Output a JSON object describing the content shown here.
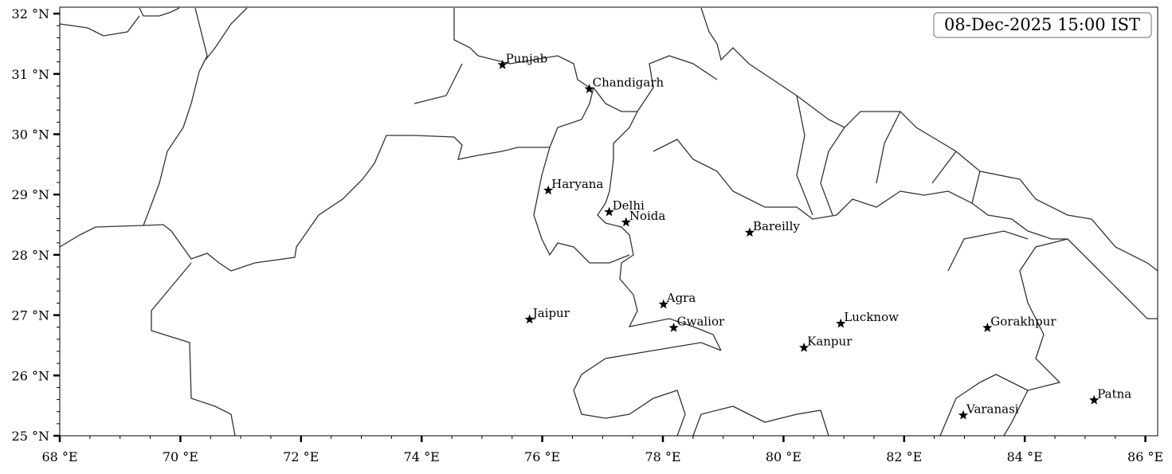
{
  "map": {
    "timestamp": "08-Dec-2025 15:00 IST",
    "extent": {
      "lon": [
        68,
        86.2
      ],
      "lat": [
        25,
        32.1
      ]
    },
    "x_ticks": [
      {
        "value": 68,
        "label": "68 °E"
      },
      {
        "value": 70,
        "label": "70 °E"
      },
      {
        "value": 72,
        "label": "72 °E"
      },
      {
        "value": 74,
        "label": "74 °E"
      },
      {
        "value": 76,
        "label": "76 °E"
      },
      {
        "value": 78,
        "label": "78 °E"
      },
      {
        "value": 80,
        "label": "80 °E"
      },
      {
        "value": 82,
        "label": "82 °E"
      },
      {
        "value": 84,
        "label": "84 °E"
      },
      {
        "value": 86,
        "label": "86 °E"
      }
    ],
    "y_ticks": [
      {
        "value": 25,
        "label": "25 °N"
      },
      {
        "value": 26,
        "label": "26 °N"
      },
      {
        "value": 27,
        "label": "27 °N"
      },
      {
        "value": 28,
        "label": "28 °N"
      },
      {
        "value": 29,
        "label": "29 °N"
      },
      {
        "value": 30,
        "label": "30 °N"
      },
      {
        "value": 31,
        "label": "31 °N"
      },
      {
        "value": 32,
        "label": "32 °N"
      }
    ],
    "marker": "star",
    "boundary_color": "#333333",
    "cities": [
      {
        "name": "Punjab",
        "lon": 75.34,
        "lat": 31.15
      },
      {
        "name": "Chandigarh",
        "lon": 76.78,
        "lat": 30.75
      },
      {
        "name": "Haryana",
        "lon": 76.1,
        "lat": 29.07
      },
      {
        "name": "Delhi",
        "lon": 77.11,
        "lat": 28.71
      },
      {
        "name": "Noida",
        "lon": 77.39,
        "lat": 28.54
      },
      {
        "name": "Bareilly",
        "lon": 79.44,
        "lat": 28.37
      },
      {
        "name": "Agra",
        "lon": 78.01,
        "lat": 27.18
      },
      {
        "name": "Jaipur",
        "lon": 75.79,
        "lat": 26.93
      },
      {
        "name": "Gwalior",
        "lon": 78.18,
        "lat": 26.79
      },
      {
        "name": "Lucknow",
        "lon": 80.95,
        "lat": 26.86
      },
      {
        "name": "Kanpur",
        "lon": 80.34,
        "lat": 26.46
      },
      {
        "name": "Gorakhpur",
        "lon": 83.38,
        "lat": 26.79
      },
      {
        "name": "Patna",
        "lon": 85.15,
        "lat": 25.59
      },
      {
        "name": "Varanasi",
        "lon": 82.98,
        "lat": 25.34
      }
    ]
  }
}
